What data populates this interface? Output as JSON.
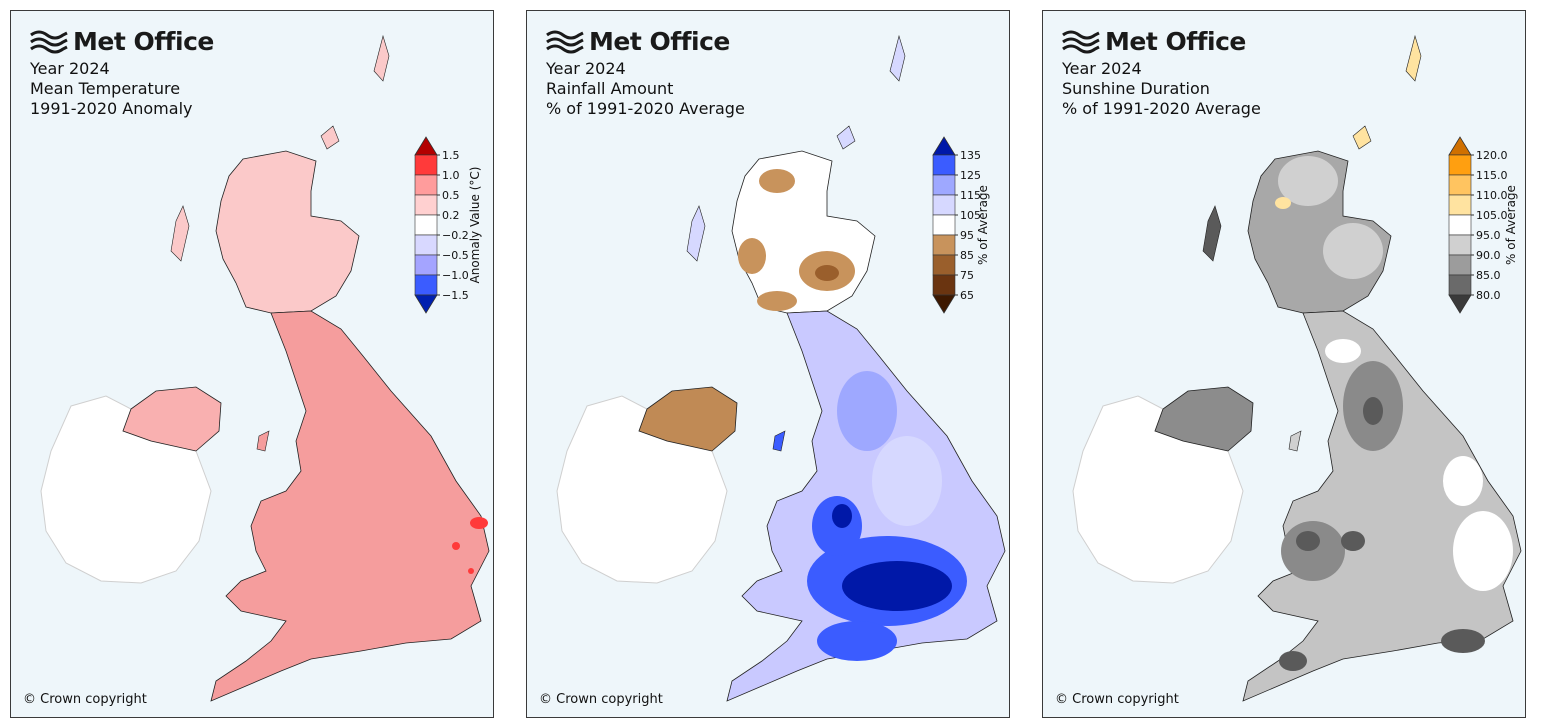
{
  "brand": "Met Office",
  "copyright": "© Crown copyright",
  "panels": [
    {
      "id": "temperature",
      "title_lines": [
        "Year 2024",
        "Mean Temperature",
        "1991-2020 Anomaly"
      ],
      "colorbar": {
        "label": "Anomaly Value (°C)",
        "ticks": [
          "1.5",
          "1.0",
          "0.5",
          "0.2",
          "−0.2",
          "−0.5",
          "−1.0",
          "−1.5"
        ],
        "colors": [
          "#ff3a3a",
          "#ff9c9c",
          "#ffd0d0",
          "#ffffff",
          "#d8d8ff",
          "#a4a4ff",
          "#3b5cff"
        ],
        "top_arrow": "#b30000",
        "bottom_arrow": "#0020b0"
      },
      "land_color": "#f59d9d",
      "scotland_color": "#fbc9c9",
      "ni_color": "#f9b0b0"
    },
    {
      "id": "rainfall",
      "title_lines": [
        "Year 2024",
        "Rainfall Amount",
        "% of 1991-2020 Average"
      ],
      "colorbar": {
        "label": "% of Average",
        "ticks": [
          "135",
          "125",
          "115",
          "105",
          "95",
          "85",
          "75",
          "65"
        ],
        "colors": [
          "#3b5cff",
          "#9ea8ff",
          "#d6d8ff",
          "#ffffff",
          "#c8935c",
          "#9a5f2c",
          "#6a3410"
        ],
        "top_arrow": "#0018a8",
        "bottom_arrow": "#3d1800"
      },
      "land_color": "#c9c9ff",
      "scotland_color": "#ffffff",
      "ni_color": "#c08a55"
    },
    {
      "id": "sunshine",
      "title_lines": [
        "Year 2024",
        "Sunshine Duration",
        "% of 1991-2020 Average"
      ],
      "colorbar": {
        "label": "% of Average",
        "ticks": [
          "120.0",
          "115.0",
          "110.0",
          "105.0",
          "95.0",
          "90.0",
          "85.0",
          "80.0"
        ],
        "colors": [
          "#ff9f10",
          "#ffc460",
          "#ffe3a0",
          "#ffffff",
          "#d0d0d0",
          "#9c9c9c",
          "#6a6a6a"
        ],
        "top_arrow": "#d07000",
        "bottom_arrow": "#3a3a3a"
      },
      "land_color": "#c4c4c4",
      "scotland_color": "#a8a8a8",
      "ni_color": "#8c8c8c"
    }
  ]
}
